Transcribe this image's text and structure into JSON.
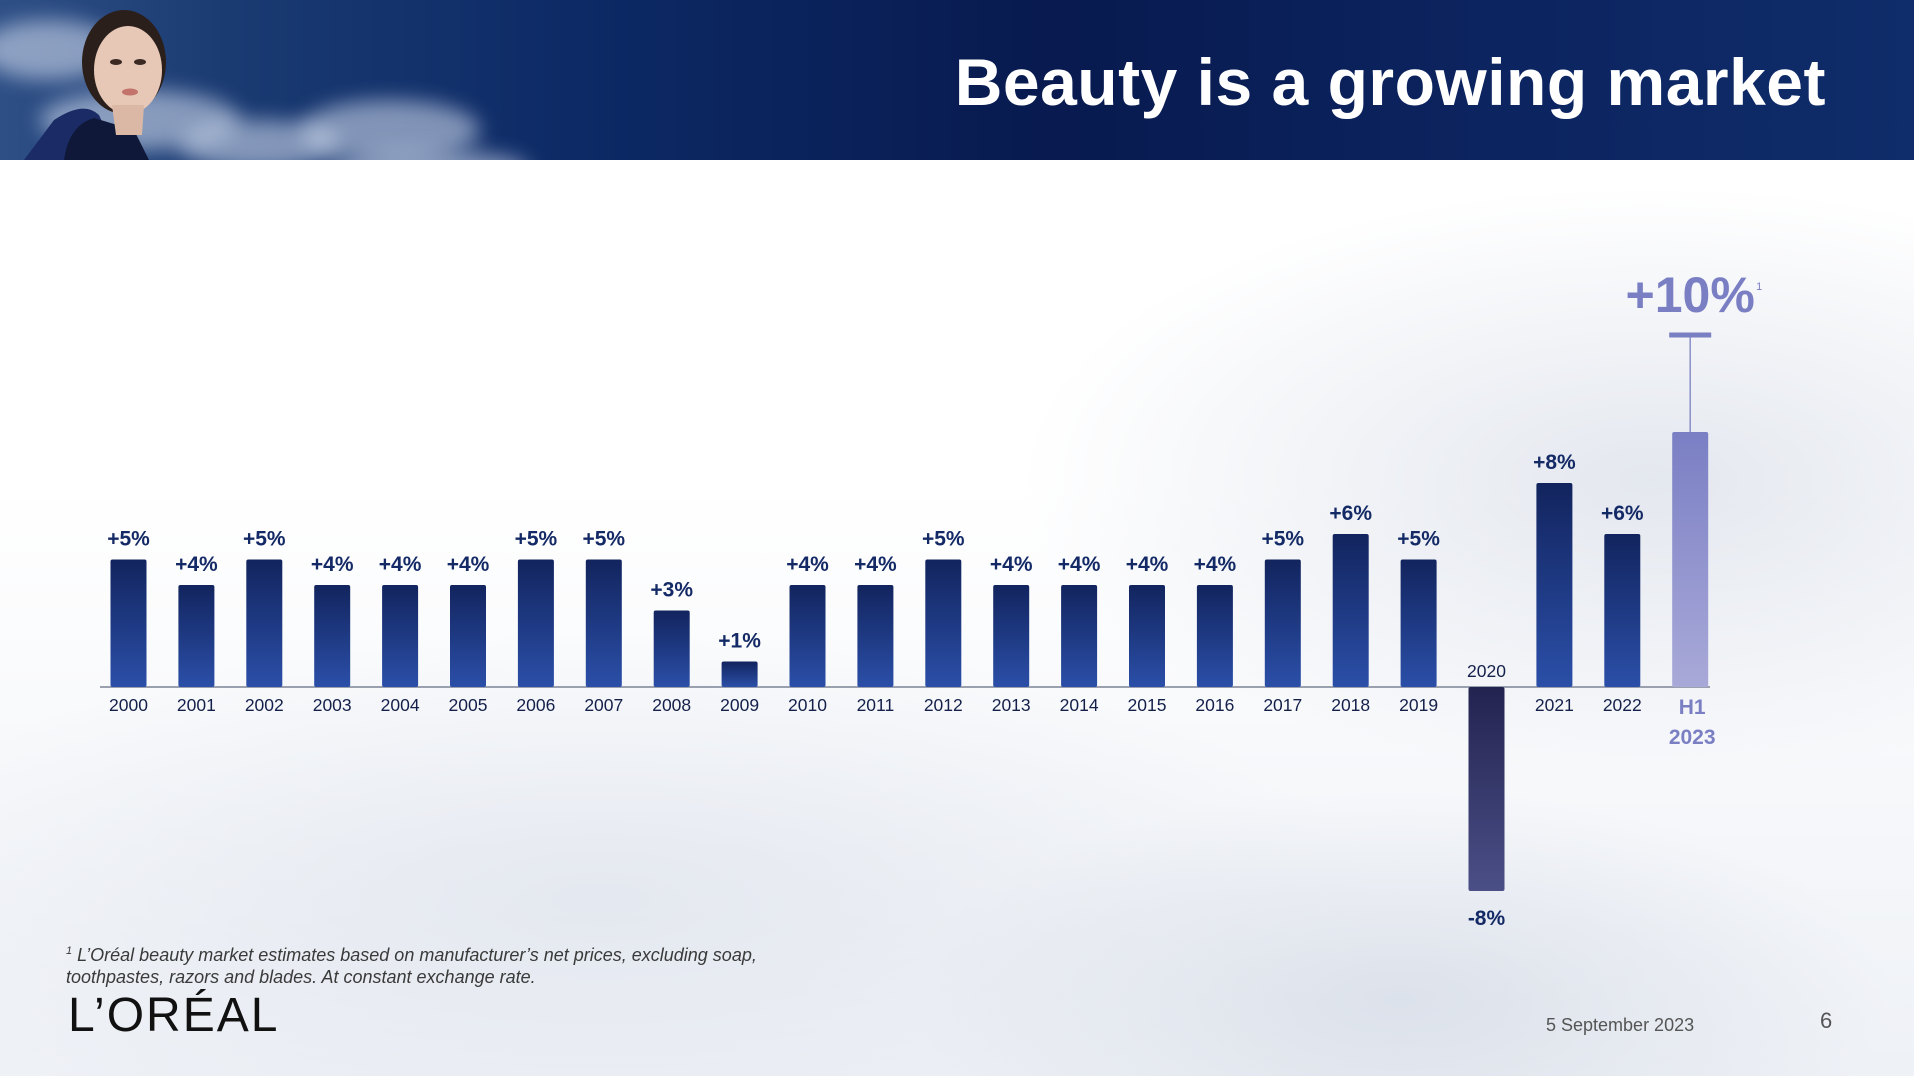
{
  "header": {
    "title": "Beauty is a growing market"
  },
  "chart_data": {
    "type": "bar",
    "categories": [
      "2000",
      "2001",
      "2002",
      "2003",
      "2004",
      "2005",
      "2006",
      "2007",
      "2008",
      "2009",
      "2010",
      "2011",
      "2012",
      "2013",
      "2014",
      "2015",
      "2016",
      "2017",
      "2018",
      "2019",
      "2020",
      "2021",
      "2022",
      "H1 2023"
    ],
    "values": [
      5,
      4,
      5,
      4,
      4,
      4,
      5,
      5,
      3,
      1,
      4,
      4,
      5,
      4,
      4,
      4,
      4,
      5,
      6,
      5,
      -8,
      8,
      6,
      10
    ],
    "value_labels": [
      "+5%",
      "+4%",
      "+5%",
      "+4%",
      "+4%",
      "+4%",
      "+5%",
      "+5%",
      "+3%",
      "+1%",
      "+4%",
      "+4%",
      "+5%",
      "+4%",
      "+4%",
      "+4%",
      "+4%",
      "+5%",
      "+6%",
      "+5%",
      "-8%",
      "+8%",
      "+6%",
      "+10%"
    ],
    "highlight": {
      "category": "H1 2023",
      "label": "+10%",
      "footnote_marker": "1"
    },
    "colors": {
      "bar_top": "#12245e",
      "bar_bottom": "#2b4fa8",
      "negative_top": "#232350",
      "negative_bottom": "#4a4f86",
      "highlight_top": "#7a7fc4",
      "highlight_bottom": "#a9a9d8",
      "label": "#142a66",
      "highlight_label": "#7a7fc4"
    },
    "title": "",
    "xlabel": "",
    "ylabel": ""
  },
  "footnote": {
    "marker": "1",
    "text": "L’Oréal beauty market estimates based on manufacturer’s net prices, excluding soap, toothpastes, razors and blades. At constant exchange rate."
  },
  "footer": {
    "logo": "L’ORÉAL",
    "date": "5 September 2023",
    "page": "6"
  }
}
